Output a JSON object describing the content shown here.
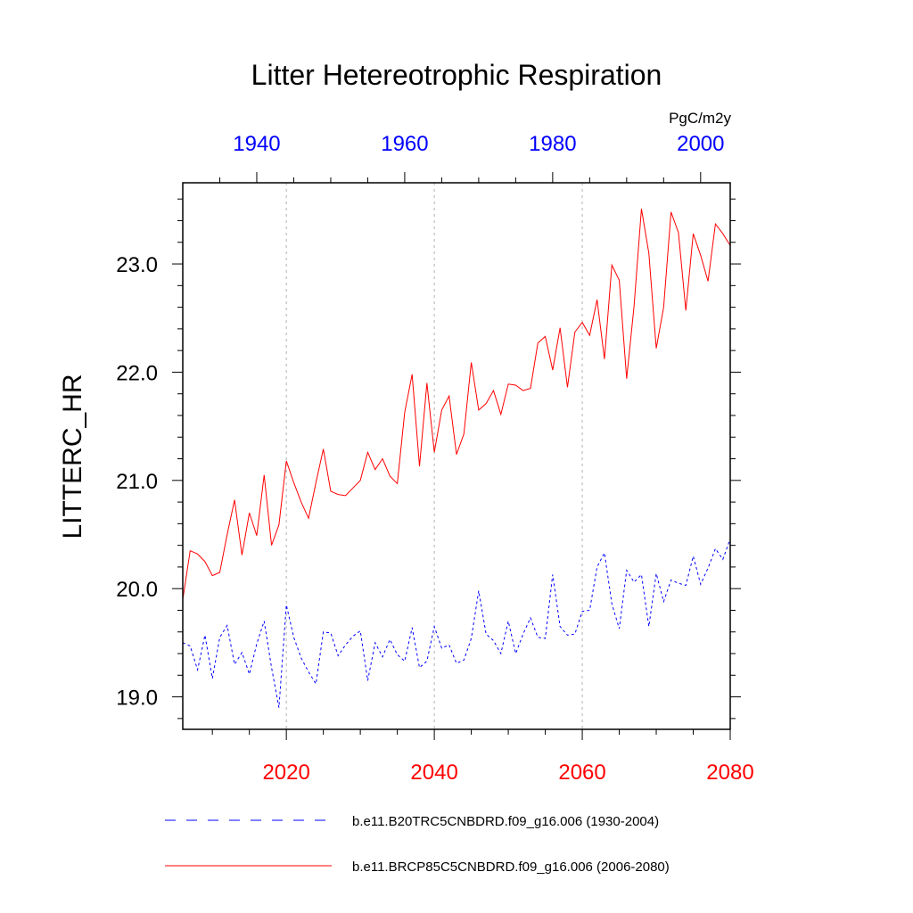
{
  "chart_data": {
    "type": "line",
    "title": "Litter Hetereotrophic Respiration",
    "units": "PgC/m2y",
    "ylabel": "LITTERC_HR",
    "xlabel": "",
    "ylim": [
      18.7,
      23.75
    ],
    "yticks": [
      19.0,
      20.0,
      21.0,
      22.0,
      23.0
    ],
    "ytick_labels": [
      "19.0",
      "20.0",
      "21.0",
      "22.0",
      "23.0"
    ],
    "bottom_axis": {
      "range": [
        2006,
        2080
      ],
      "ticks": [
        2020,
        2040,
        2060,
        2080
      ],
      "tick_labels": [
        "2020",
        "2040",
        "2060",
        "2080"
      ],
      "color": "#ff0000"
    },
    "top_axis": {
      "range": [
        1930,
        2004
      ],
      "ticks": [
        1940,
        1960,
        1980,
        2000
      ],
      "tick_labels": [
        "1940",
        "1960",
        "1980",
        "2000"
      ],
      "color": "#0000ff"
    },
    "gridlines_x": [
      2020,
      2040,
      2060
    ],
    "series": [
      {
        "name": "b.e11.B20TRC5CNBDRD.f09_g16.006 (1930-2004)",
        "color": "#0000ff",
        "style": "dashed",
        "x_axis": "top",
        "x_start": 1930,
        "values": [
          19.5,
          19.47,
          19.25,
          19.57,
          19.17,
          19.55,
          19.66,
          19.3,
          19.41,
          19.21,
          19.49,
          19.7,
          19.27,
          18.9,
          19.85,
          19.55,
          19.36,
          19.23,
          19.12,
          19.6,
          19.59,
          19.38,
          19.48,
          19.56,
          19.61,
          19.15,
          19.5,
          19.37,
          19.53,
          19.39,
          19.33,
          19.64,
          19.27,
          19.33,
          19.65,
          19.45,
          19.48,
          19.31,
          19.34,
          19.54,
          19.98,
          19.58,
          19.52,
          19.4,
          19.7,
          19.4,
          19.58,
          19.73,
          19.55,
          19.54,
          20.13,
          19.65,
          19.57,
          19.58,
          19.79,
          19.8,
          20.2,
          20.33,
          19.86,
          19.63,
          20.17,
          20.06,
          20.13,
          19.65,
          20.14,
          19.88,
          20.08,
          20.05,
          20.03,
          20.3,
          20.04,
          20.19,
          20.37,
          20.27,
          20.46
        ]
      },
      {
        "name": "b.e11.BRCP85C5CNBDRD.f09_g16.006 (2006-2080)",
        "color": "#ff0000",
        "style": "solid",
        "x_axis": "bottom",
        "x_start": 2006,
        "values": [
          19.9,
          20.35,
          20.32,
          20.25,
          20.12,
          20.15,
          20.5,
          20.82,
          20.31,
          20.7,
          20.49,
          21.05,
          20.4,
          20.59,
          21.18,
          20.98,
          20.8,
          20.65,
          20.98,
          21.29,
          20.9,
          20.87,
          20.86,
          20.93,
          21.0,
          21.26,
          21.1,
          21.2,
          21.04,
          20.97,
          21.63,
          21.98,
          21.13,
          21.9,
          21.26,
          21.65,
          21.78,
          21.24,
          21.43,
          22.09,
          21.65,
          21.71,
          21.83,
          21.61,
          21.89,
          21.88,
          21.83,
          21.85,
          22.27,
          22.33,
          22.02,
          22.41,
          21.86,
          22.37,
          22.46,
          22.34,
          22.67,
          22.12,
          22.99,
          22.85,
          21.94,
          22.61,
          23.51,
          23.1,
          22.22,
          22.6,
          23.48,
          23.29,
          22.57,
          23.28,
          23.08,
          22.84,
          23.37,
          23.28,
          23.17
        ]
      }
    ]
  }
}
